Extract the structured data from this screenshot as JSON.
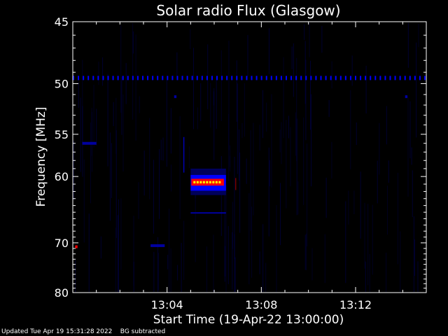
{
  "chart_data": {
    "type": "heatmap",
    "title": "Solar radio Flux (Glasgow)",
    "xlabel": "Start Time (19-Apr-22 13:00:00)",
    "ylabel": "Frequency [MHz]",
    "x_tick_labels": [
      "13:04",
      "13:08",
      "13:12"
    ],
    "y_tick_labels": [
      "45",
      "50",
      "55",
      "60",
      "70",
      "80"
    ],
    "y_ticks_mhz": [
      45,
      50,
      55,
      60,
      70,
      80
    ],
    "x_range_minutes": [
      0,
      15
    ],
    "y_range_mhz": [
      45,
      80
    ],
    "y_scale": "reciprocal",
    "background_color": "#000000",
    "colormap": [
      "#00004d",
      "#0000ff",
      "#ff0000",
      "#ffff00"
    ],
    "features": [
      {
        "kind": "band",
        "freq_mhz": 49.5,
        "t_start_min": 0.0,
        "t_end_min": 15.0,
        "intensity": 0.45
      },
      {
        "kind": "burst",
        "freq_mhz": 60.8,
        "t_start_min": 5.0,
        "t_end_min": 6.5,
        "intensity": 1.0
      },
      {
        "kind": "spot",
        "freq_mhz": 56.0,
        "t_start_min": 0.4,
        "t_end_min": 1.0,
        "intensity": 0.35
      },
      {
        "kind": "spot",
        "freq_mhz": 70.7,
        "t_start_min": 0.1,
        "t_end_min": 0.2,
        "intensity": 0.8
      },
      {
        "kind": "spot",
        "freq_mhz": 70.5,
        "t_start_min": 3.3,
        "t_end_min": 3.9,
        "intensity": 0.35
      },
      {
        "kind": "spot",
        "freq_mhz": 51.2,
        "t_start_min": 4.3,
        "t_end_min": 4.4,
        "intensity": 0.4
      },
      {
        "kind": "spot",
        "freq_mhz": 51.2,
        "t_start_min": 14.1,
        "t_end_min": 14.2,
        "intensity": 0.4
      }
    ]
  },
  "footer": {
    "updated": "Updated Tue Apr 19 15:31:28 2022",
    "note": "BG subtracted"
  }
}
